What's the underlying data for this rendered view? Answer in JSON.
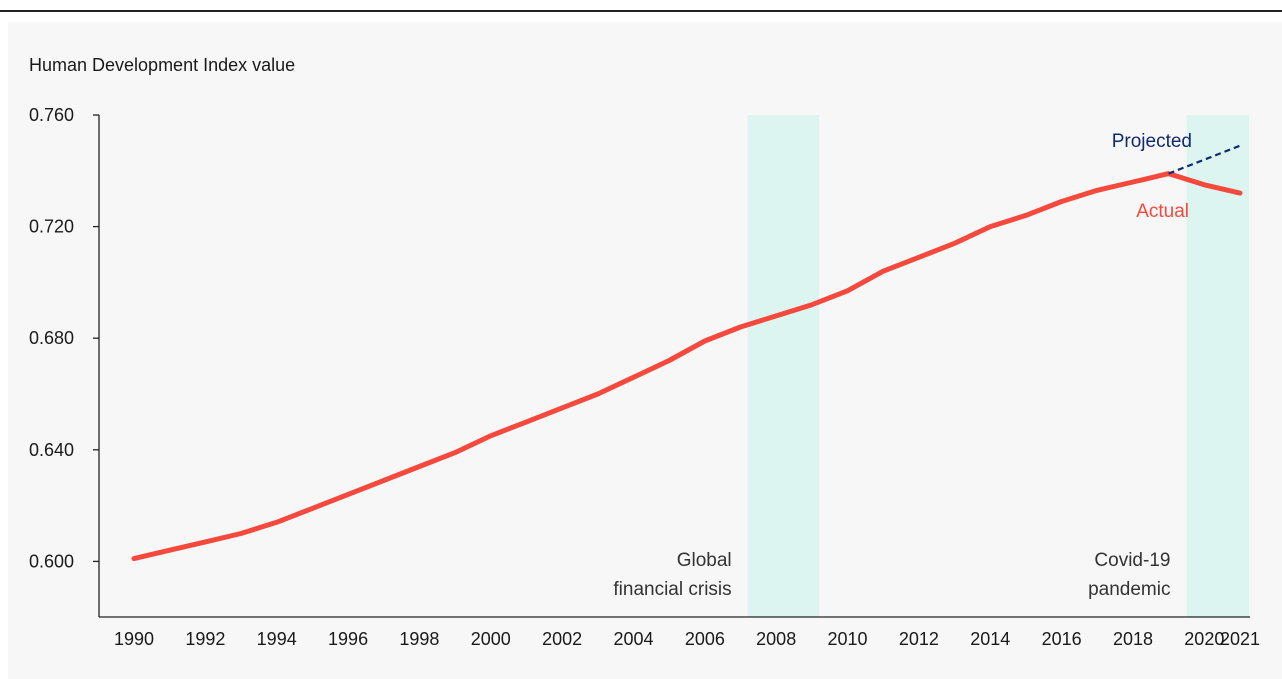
{
  "colors": {
    "actual": "#f5493d",
    "projected": "#102a6e",
    "band": "#dcf5f0",
    "axis": "#222222",
    "background": "#f7f7f7"
  },
  "chart_data": {
    "type": "line",
    "title": "",
    "xlabel": "",
    "ylabel": "Human Development Index value",
    "xlim": [
      1990,
      2021
    ],
    "ylim": [
      0.58,
      0.76
    ],
    "y_ticks": [
      "0.600",
      "0.640",
      "0.680",
      "0.720",
      "0.760"
    ],
    "y_tick_values": [
      0.6,
      0.64,
      0.68,
      0.72,
      0.76
    ],
    "x_ticks": [
      "1990",
      "1992",
      "1994",
      "1996",
      "1998",
      "2000",
      "2002",
      "2004",
      "2006",
      "2008",
      "2010",
      "2012",
      "2014",
      "2016",
      "2018",
      "2020",
      "2021"
    ],
    "x_tick_values": [
      1990,
      1992,
      1994,
      1996,
      1998,
      2000,
      2002,
      2004,
      2006,
      2008,
      2010,
      2012,
      2014,
      2016,
      2018,
      2020,
      2021
    ],
    "grid": false,
    "series": [
      {
        "name": "Actual",
        "color": "#f5493d",
        "style": "solid",
        "x": [
          1990,
          1991,
          1992,
          1993,
          1994,
          1995,
          1996,
          1997,
          1998,
          1999,
          2000,
          2001,
          2002,
          2003,
          2004,
          2005,
          2006,
          2007,
          2008,
          2009,
          2010,
          2011,
          2012,
          2013,
          2014,
          2015,
          2016,
          2017,
          2018,
          2019,
          2020,
          2021
        ],
        "values": [
          0.601,
          0.604,
          0.607,
          0.61,
          0.614,
          0.619,
          0.624,
          0.629,
          0.634,
          0.639,
          0.645,
          0.65,
          0.655,
          0.66,
          0.666,
          0.672,
          0.679,
          0.684,
          0.688,
          0.692,
          0.697,
          0.704,
          0.709,
          0.714,
          0.72,
          0.724,
          0.729,
          0.733,
          0.736,
          0.739,
          0.735,
          0.732
        ]
      },
      {
        "name": "Projected",
        "color": "#102a6e",
        "style": "dashed",
        "x": [
          2019,
          2021
        ],
        "values": [
          0.739,
          0.749
        ]
      }
    ],
    "shaded_periods": [
      {
        "start": 2007.2,
        "end": 2009.2,
        "label_lines": [
          "Global",
          "financial crisis"
        ]
      },
      {
        "start": 2019.5,
        "end": 2021.5,
        "label_lines": [
          "Covid-19",
          "pandemic"
        ]
      }
    ],
    "series_labels": [
      {
        "text": "Projected",
        "series": "Projected"
      },
      {
        "text": "Actual",
        "series": "Actual"
      }
    ]
  }
}
